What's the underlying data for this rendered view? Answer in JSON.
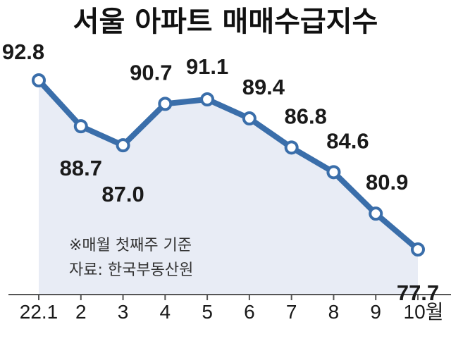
{
  "chart_data": {
    "type": "line",
    "title": "서울 아파트 매매수급지수",
    "categories": [
      "22.1",
      "2",
      "3",
      "4",
      "5",
      "6",
      "7",
      "8",
      "9",
      "10월"
    ],
    "values": [
      92.8,
      88.7,
      87.0,
      90.7,
      91.1,
      89.4,
      86.8,
      84.6,
      80.9,
      77.7
    ],
    "value_labels": [
      "92.8",
      "88.7",
      "87.0",
      "90.7",
      "91.1",
      "89.4",
      "86.8",
      "84.6",
      "80.9",
      "77.7"
    ],
    "notes": [
      "※매월 첫째주 기준",
      "자료: 한국부동산원"
    ],
    "ylim": [
      70,
      96
    ],
    "grid": false,
    "colors": {
      "line": "#3a6eaa",
      "marker_fill": "#ffffff",
      "area": "#e8ecf5",
      "axis": "#555555"
    }
  }
}
